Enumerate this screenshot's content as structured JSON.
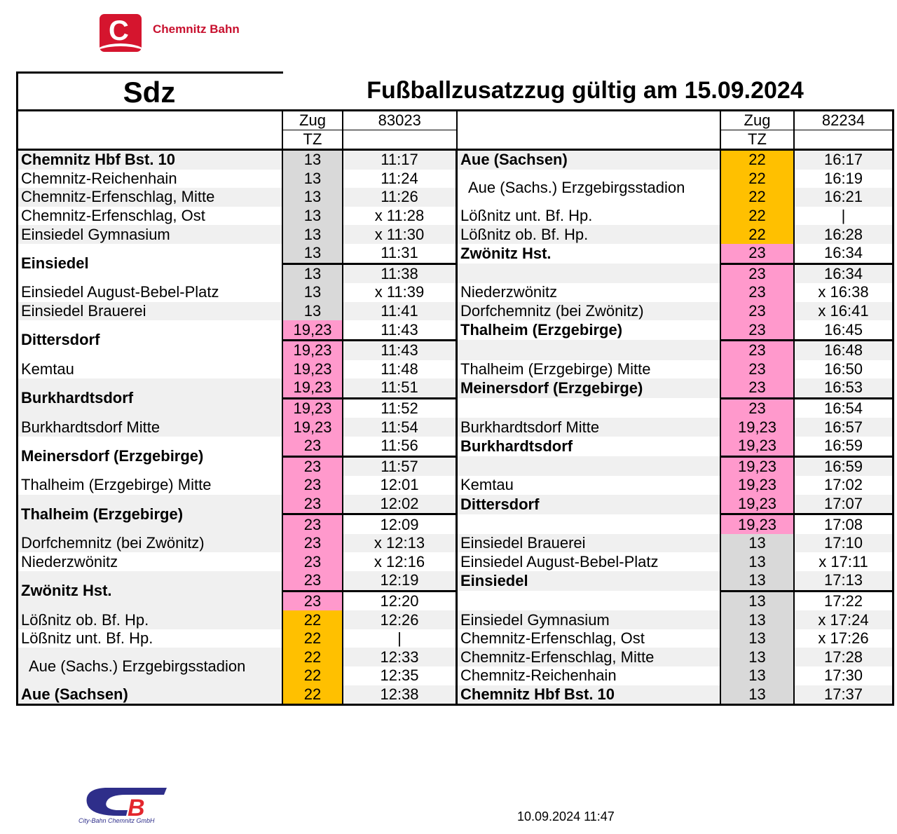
{
  "header": {
    "brand": "Chemnitz Bahn",
    "logo_letter": "C",
    "code": "Sdz",
    "title": "Fußballzusatzzug gültig am 15.09.2024"
  },
  "colors": {
    "grey": "#d9d9d9",
    "pink": "#ff99cc",
    "orange": "#ffc000",
    "brand": "#c8102e"
  },
  "columns": {
    "zug": "Zug",
    "tz": "TZ",
    "left_train": "83023",
    "right_train": "82234"
  },
  "left": {
    "stations": [
      {
        "name": "Chemnitz Hbf Bst. 10",
        "bold": true,
        "span": 1
      },
      {
        "name": "Chemnitz-Reichenhain",
        "span": 1
      },
      {
        "name": "Chemnitz-Erfenschlag, Mitte",
        "span": 1
      },
      {
        "name": "Chemnitz-Erfenschlag, Ost",
        "span": 1
      },
      {
        "name": "Einsiedel Gymnasium",
        "span": 1
      },
      {
        "name": "Einsiedel",
        "bold": true,
        "span": 2
      },
      {
        "name": "Einsiedel August-Bebel-Platz",
        "span": 1
      },
      {
        "name": "Einsiedel Brauerei",
        "span": 1
      },
      {
        "name": "Dittersdorf",
        "bold": true,
        "span": 2
      },
      {
        "name": "Kemtau",
        "span": 1
      },
      {
        "name": "Burkhardtsdorf",
        "bold": true,
        "span": 2
      },
      {
        "name": "Burkhardtsdorf Mitte",
        "span": 1
      },
      {
        "name": "Meinersdorf (Erzgebirge)",
        "bold": true,
        "span": 2
      },
      {
        "name": "Thalheim (Erzgebirge) Mitte",
        "span": 1
      },
      {
        "name": "Thalheim (Erzgebirge)",
        "bold": true,
        "span": 2
      },
      {
        "name": "Dorfchemnitz (bei Zwönitz)",
        "span": 1
      },
      {
        "name": "Niederzwönitz",
        "span": 1
      },
      {
        "name": "Zwönitz Hst.",
        "bold": true,
        "span": 2
      },
      {
        "name": "Lößnitz ob. Bf. Hp.",
        "span": 1
      },
      {
        "name": "Lößnitz unt. Bf. Hp.",
        "span": 1
      },
      {
        "name": "  Aue (Sachs.) Erzgebirgsstadion",
        "span": 2
      },
      {
        "name": "Aue (Sachsen)",
        "bold": true,
        "span": 1
      }
    ],
    "tz": [
      "13",
      "13",
      "13",
      "13",
      "13",
      "13",
      "13",
      "13",
      "13",
      "19,23",
      "19,23",
      "19,23",
      "19,23",
      "19,23",
      "19,23",
      "23",
      "23",
      "23",
      "23",
      "23",
      "23",
      "23",
      "23",
      "23",
      "22",
      "22",
      "22",
      "22",
      "22"
    ],
    "times": [
      "11:17",
      "11:24",
      "11:26",
      "x 11:28",
      "x 11:30",
      "11:31",
      "11:38",
      "x 11:39",
      "11:41",
      "11:43",
      "11:43",
      "11:48",
      "11:51",
      "11:52",
      "11:54",
      "11:56",
      "11:57",
      "12:01",
      "12:02",
      "12:09",
      "x 12:13",
      "x 12:16",
      "12:19",
      "12:20",
      "12:26",
      "|",
      "12:33",
      "12:35",
      "12:38"
    ]
  },
  "right": {
    "stations": [
      {
        "name": "Aue (Sachsen)",
        "bold": true,
        "span": 1
      },
      {
        "name": "  Aue (Sachs.) Erzgebirgsstadion",
        "span": 2
      },
      {
        "name": "Lößnitz unt. Bf. Hp.",
        "span": 1
      },
      {
        "name": "Lößnitz ob. Bf. Hp.",
        "span": 1
      },
      {
        "name": "Zwönitz Hst.",
        "bold": true,
        "span": 1
      },
      {
        "name": "",
        "span": 1
      },
      {
        "name": "Niederzwönitz",
        "span": 1
      },
      {
        "name": "Dorfchemnitz (bei Zwönitz)",
        "span": 1
      },
      {
        "name": "Thalheim (Erzgebirge)",
        "bold": true,
        "span": 1
      },
      {
        "name": "",
        "span": 1
      },
      {
        "name": "Thalheim (Erzgebirge) Mitte",
        "span": 1
      },
      {
        "name": "Meinersdorf (Erzgebirge)",
        "bold": true,
        "span": 1
      },
      {
        "name": "",
        "span": 1
      },
      {
        "name": "Burkhardtsdorf Mitte",
        "span": 1
      },
      {
        "name": "Burkhardtsdorf",
        "bold": true,
        "span": 1
      },
      {
        "name": "",
        "span": 1
      },
      {
        "name": "Kemtau",
        "span": 1
      },
      {
        "name": "Dittersdorf",
        "bold": true,
        "span": 1
      },
      {
        "name": "",
        "span": 1
      },
      {
        "name": "Einsiedel Brauerei",
        "span": 1
      },
      {
        "name": "Einsiedel August-Bebel-Platz",
        "span": 1
      },
      {
        "name": "Einsiedel",
        "bold": true,
        "span": 1
      },
      {
        "name": "",
        "span": 1
      },
      {
        "name": "Einsiedel Gymnasium",
        "span": 1
      },
      {
        "name": "Chemnitz-Erfenschlag, Ost",
        "span": 1
      },
      {
        "name": "Chemnitz-Erfenschlag, Mitte",
        "span": 1
      },
      {
        "name": "Chemnitz-Reichenhain",
        "span": 1
      },
      {
        "name": "Chemnitz Hbf Bst. 10",
        "bold": true,
        "span": 1
      }
    ],
    "tz": [
      "22",
      "22",
      "22",
      "22",
      "22",
      "23",
      "23",
      "23",
      "23",
      "23",
      "23",
      "23",
      "23",
      "23",
      "19,23",
      "19,23",
      "19,23",
      "19,23",
      "19,23",
      "19,23",
      "13",
      "13",
      "13",
      "13",
      "13",
      "13",
      "13",
      "13",
      "13"
    ],
    "times": [
      "16:17",
      "16:19",
      "16:21",
      "|",
      "16:28",
      "16:34",
      "16:34",
      "x 16:38",
      "x 16:41",
      "16:45",
      "16:48",
      "16:50",
      "16:53",
      "16:54",
      "16:57",
      "16:59",
      "16:59",
      "17:02",
      "17:07",
      "17:08",
      "17:10",
      "x 17:11",
      "17:13",
      "17:22",
      "x 17:24",
      "x 17:26",
      "17:28",
      "17:30",
      "17:37"
    ]
  },
  "footer": {
    "company": "City-Bahn Chemnitz GmbH",
    "logo_letters": "CB",
    "timestamp": "10.09.2024  11:47"
  }
}
